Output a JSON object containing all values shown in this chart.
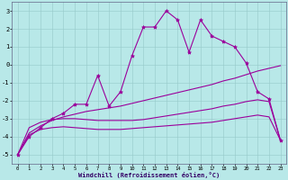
{
  "xlabel": "Windchill (Refroidissement éolien,°C)",
  "xlim": [
    -0.5,
    23.5
  ],
  "ylim": [
    -5.5,
    3.5
  ],
  "yticks": [
    -5,
    -4,
    -3,
    -2,
    -1,
    0,
    1,
    2,
    3
  ],
  "xticks": [
    0,
    1,
    2,
    3,
    4,
    5,
    6,
    7,
    8,
    9,
    10,
    11,
    12,
    13,
    14,
    15,
    16,
    17,
    18,
    19,
    20,
    21,
    22,
    23
  ],
  "bg_color": "#b8e8e8",
  "line_color": "#9b009b",
  "grid_color": "#99cccc",
  "series1_x": [
    0,
    1,
    2,
    3,
    4,
    5,
    6,
    7,
    8,
    9,
    10,
    11,
    12,
    13,
    14,
    15,
    16,
    17,
    18,
    19,
    20,
    21,
    22,
    23
  ],
  "series1_y": [
    -5.0,
    -4.0,
    -3.5,
    -3.0,
    -2.7,
    -2.2,
    -2.2,
    -0.6,
    -2.3,
    -1.5,
    0.5,
    2.1,
    2.1,
    3.0,
    2.5,
    0.7,
    2.5,
    1.6,
    1.3,
    1.0,
    0.1,
    -1.5,
    -1.9,
    -4.2
  ],
  "series2_x": [
    0,
    1,
    2,
    3,
    4,
    5,
    6,
    7,
    8,
    9,
    10,
    11,
    12,
    13,
    14,
    15,
    16,
    17,
    18,
    19,
    20,
    21,
    22,
    23
  ],
  "series2_y": [
    -5.0,
    -3.8,
    -3.4,
    -3.1,
    -2.9,
    -2.75,
    -2.6,
    -2.5,
    -2.4,
    -2.3,
    -2.15,
    -2.0,
    -1.85,
    -1.7,
    -1.55,
    -1.4,
    -1.25,
    -1.1,
    -0.9,
    -0.75,
    -0.55,
    -0.35,
    -0.2,
    -0.05
  ],
  "series3_x": [
    0,
    1,
    2,
    3,
    4,
    5,
    6,
    7,
    8,
    9,
    10,
    11,
    12,
    13,
    14,
    15,
    16,
    17,
    18,
    19,
    20,
    21,
    22,
    23
  ],
  "series3_y": [
    -5.0,
    -3.5,
    -3.2,
    -3.05,
    -3.0,
    -3.0,
    -3.05,
    -3.1,
    -3.1,
    -3.1,
    -3.1,
    -3.05,
    -2.95,
    -2.85,
    -2.75,
    -2.65,
    -2.55,
    -2.45,
    -2.3,
    -2.2,
    -2.05,
    -1.95,
    -2.05,
    -4.2
  ],
  "series4_x": [
    0,
    1,
    2,
    3,
    4,
    5,
    6,
    7,
    8,
    9,
    10,
    11,
    12,
    13,
    14,
    15,
    16,
    17,
    18,
    19,
    20,
    21,
    22,
    23
  ],
  "series4_y": [
    -5.0,
    -3.9,
    -3.6,
    -3.5,
    -3.45,
    -3.5,
    -3.55,
    -3.6,
    -3.6,
    -3.6,
    -3.55,
    -3.5,
    -3.45,
    -3.4,
    -3.35,
    -3.3,
    -3.25,
    -3.2,
    -3.1,
    -3.0,
    -2.9,
    -2.8,
    -2.9,
    -4.2
  ]
}
